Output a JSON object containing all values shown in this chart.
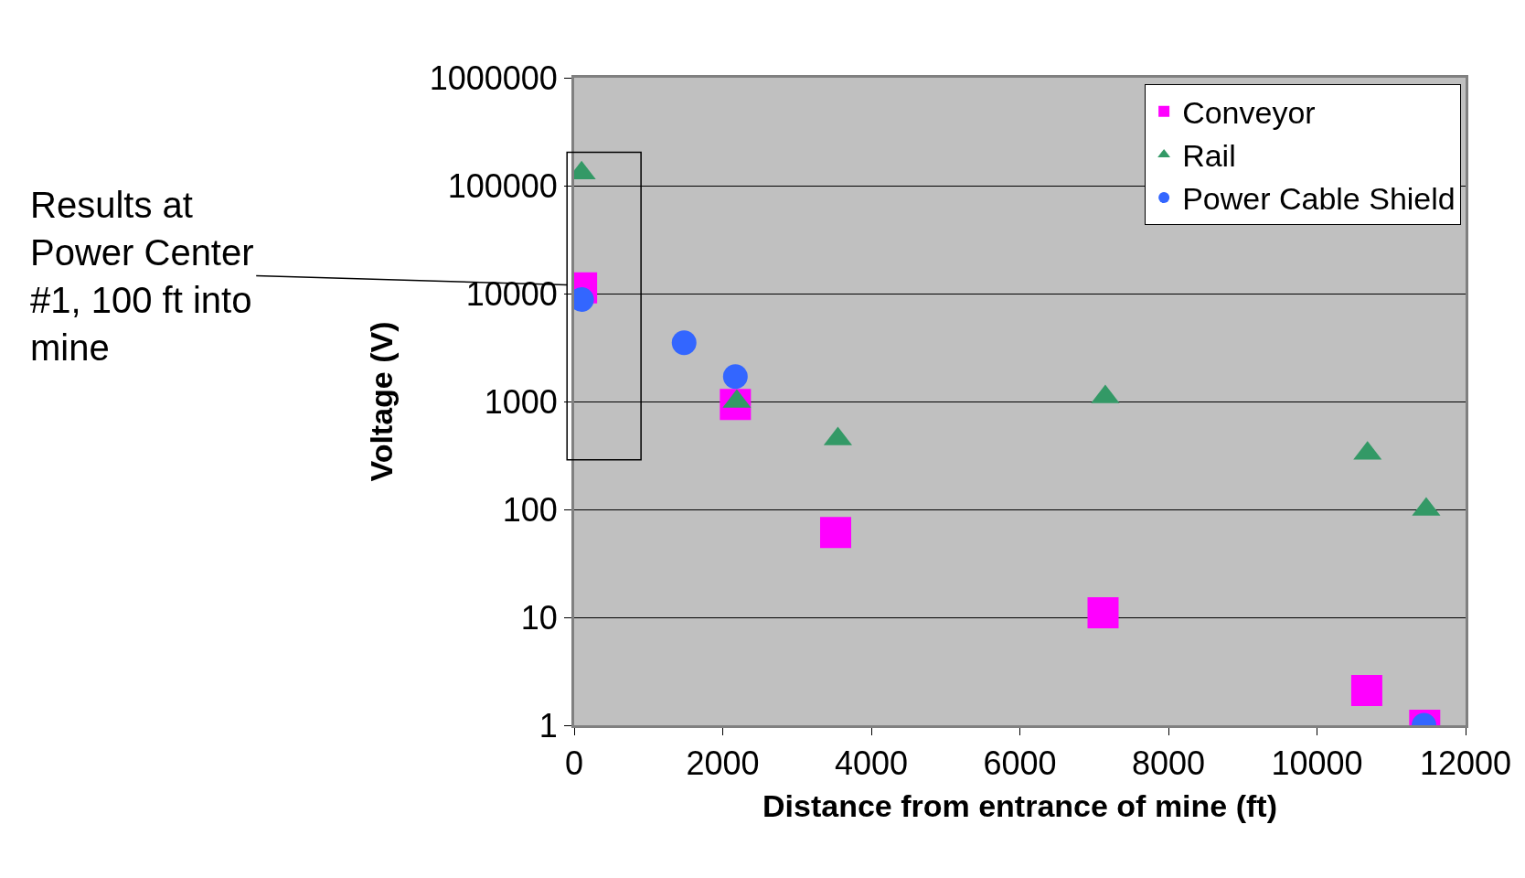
{
  "chart_data": {
    "type": "scatter",
    "xlabel": "Distance from entrance of mine (ft)",
    "ylabel": "Voltage (V)",
    "log": "y",
    "xlim": [
      0,
      12000
    ],
    "xticks": [
      0,
      2000,
      4000,
      6000,
      8000,
      10000,
      12000
    ],
    "ylim": [
      1,
      1000000
    ],
    "yticks": [
      1,
      10,
      100,
      1000,
      10000,
      100000,
      1000000
    ],
    "grid": "y",
    "legend": "top right",
    "series": [
      {
        "name": "Conveyor",
        "color": "#ff00ff",
        "marker": "square",
        "x": [
          100,
          2170,
          3520,
          7120,
          10670,
          11450
        ],
        "values": [
          11300,
          940,
          61,
          11,
          2.1,
          1
        ]
      },
      {
        "name": "Rail",
        "color": "#339966",
        "marker": "triangle",
        "x": [
          100,
          2190,
          3550,
          7150,
          10680,
          11470
        ],
        "values": [
          131000,
          1000,
          450,
          1100,
          330,
          100
        ]
      },
      {
        "name": "Power Cable Shield",
        "color": "#3366ff",
        "marker": "circle",
        "x": [
          100,
          1480,
          2170,
          11440
        ],
        "values": [
          8800,
          3500,
          1700,
          1
        ]
      }
    ],
    "annotations": [
      "Results at\nPower Center\n#1, 100 ft into\nmine"
    ]
  }
}
